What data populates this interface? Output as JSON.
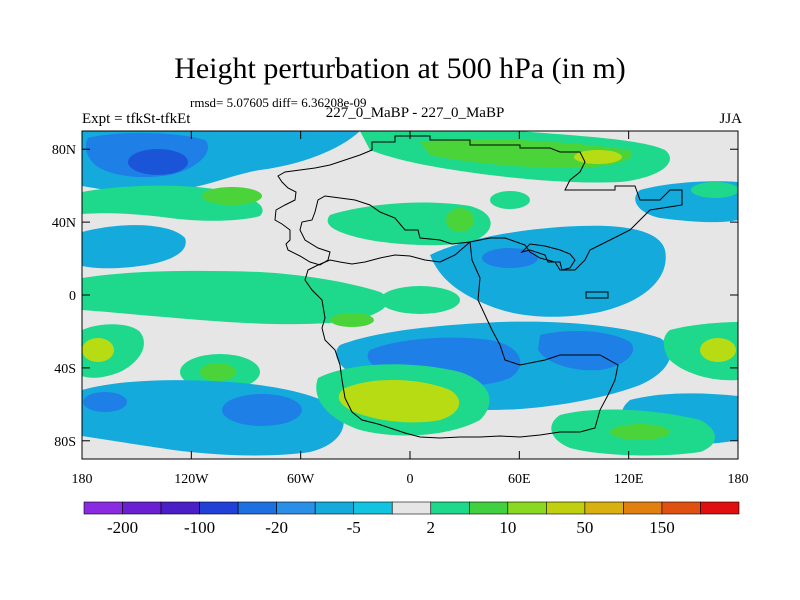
{
  "title": "Height perturbation at 500 hPa (in m)",
  "stats": "rmsd= 5.07605 diff= 6.36208e-09",
  "expt": "Expt = tfkSt-tfkEt",
  "center_label": "227_0_MaBP - 227_0_MaBP",
  "season": "JJA",
  "x_ticks": [
    {
      "label": "180",
      "value": -180
    },
    {
      "label": "120W",
      "value": -120
    },
    {
      "label": "60W",
      "value": -60
    },
    {
      "label": "0",
      "value": 0
    },
    {
      "label": "60E",
      "value": 60
    },
    {
      "label": "120E",
      "value": 120
    },
    {
      "label": "180",
      "value": 180
    }
  ],
  "y_ticks": [
    {
      "label": "80N",
      "value": 80
    },
    {
      "label": "40N",
      "value": 40
    },
    {
      "label": "0",
      "value": 0
    },
    {
      "label": "40S",
      "value": -40
    },
    {
      "label": "80S",
      "value": -80
    }
  ],
  "colorbar": {
    "colors": [
      "#8a2be2",
      "#6a1fd0",
      "#4a1fc8",
      "#2040d8",
      "#1e6fe0",
      "#2a8fe6",
      "#14aadc",
      "#12c4e0",
      "#e6e6e6",
      "#1ed88c",
      "#40d040",
      "#8ad820",
      "#c0d010",
      "#d8b010",
      "#e08010",
      "#e05010",
      "#e01010"
    ],
    "labels": [
      {
        "text": "-200",
        "boundary": 1
      },
      {
        "text": "-100",
        "boundary": 3
      },
      {
        "text": "-20",
        "boundary": 5
      },
      {
        "text": "-5",
        "boundary": 7
      },
      {
        "text": "2",
        "boundary": 9
      },
      {
        "text": "10",
        "boundary": 11
      },
      {
        "text": "50",
        "boundary": 13
      },
      {
        "text": "150",
        "boundary": 15
      }
    ]
  },
  "fill_colors": {
    "neutral": "#e6e6e6",
    "light_blue": "#14aadc",
    "mid_blue": "#1e7fe6",
    "dark_blue": "#1a55d8",
    "teal_green": "#1ed88c",
    "green": "#4ad43a",
    "yellow_green": "#b8dc14"
  }
}
